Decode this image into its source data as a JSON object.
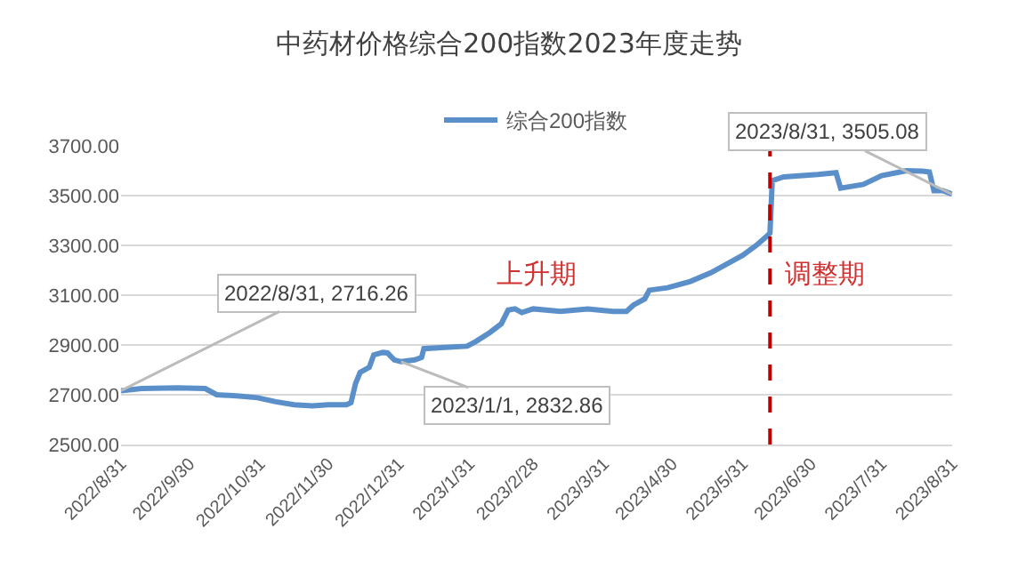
{
  "chart_data": {
    "type": "line",
    "title": "中药材价格综合200指数2023年度走势",
    "x": [
      "2022-08-31",
      "2022-09-09",
      "2022-09-25",
      "2022-10-07",
      "2022-10-12",
      "2022-10-22",
      "2022-10-30",
      "2022-11-07",
      "2022-11-15",
      "2022-11-23",
      "2022-11-30",
      "2022-12-08",
      "2022-12-10",
      "2022-12-12",
      "2022-12-14",
      "2022-12-18",
      "2022-12-20",
      "2022-12-24",
      "2022-12-26",
      "2022-12-29",
      "2023-01-01",
      "2023-01-07",
      "2023-01-10",
      "2023-01-11",
      "2023-01-20",
      "2023-01-30",
      "2023-02-03",
      "2023-02-09",
      "2023-02-14",
      "2023-02-17",
      "2023-02-20",
      "2023-02-23",
      "2023-02-28",
      "2023-03-12",
      "2023-03-24",
      "2023-04-04",
      "2023-04-10",
      "2023-04-13",
      "2023-04-18",
      "2023-04-20",
      "2023-04-28",
      "2023-05-08",
      "2023-05-17",
      "2023-05-25",
      "2023-05-31",
      "2023-06-06",
      "2023-06-11",
      "2023-06-12",
      "2023-06-13",
      "2023-06-18",
      "2023-07-03",
      "2023-07-11",
      "2023-07-13",
      "2023-07-23",
      "2023-07-31",
      "2023-08-11",
      "2023-08-18",
      "2023-08-21",
      "2023-08-23",
      "2023-08-27",
      "2023-08-31"
    ],
    "series": [
      {
        "name": "综合200指数",
        "color": "#5b8fc9",
        "values": [
          2716.26,
          2725,
          2728,
          2725,
          2700,
          2695,
          2688,
          2672,
          2660,
          2655,
          2660,
          2660,
          2668,
          2745,
          2790,
          2810,
          2860,
          2870,
          2868,
          2840,
          2832.86,
          2840,
          2850,
          2885,
          2890,
          2895,
          2915,
          2950,
          2985,
          3040,
          3045,
          3030,
          3045,
          3035,
          3045,
          3035,
          3035,
          3060,
          3085,
          3120,
          3130,
          3155,
          3190,
          3230,
          3260,
          3300,
          3340,
          3350,
          3560,
          3575,
          3585,
          3592,
          3530,
          3545,
          3580,
          3600,
          3598,
          3595,
          3520,
          3520,
          3505.08
        ]
      }
    ],
    "xlim": [
      "2022-08-31",
      "2023-08-31"
    ],
    "xticks": [
      {
        "value": "2022-08-31",
        "label": "2022/8/31"
      },
      {
        "value": "2022-09-30",
        "label": "2022/9/30"
      },
      {
        "value": "2022-10-31",
        "label": "2022/10/31"
      },
      {
        "value": "2022-11-30",
        "label": "2022/11/30"
      },
      {
        "value": "2022-12-31",
        "label": "2022/12/31"
      },
      {
        "value": "2023-01-31",
        "label": "2023/1/31"
      },
      {
        "value": "2023-02-28",
        "label": "2023/2/28"
      },
      {
        "value": "2023-03-31",
        "label": "2023/3/31"
      },
      {
        "value": "2023-04-30",
        "label": "2023/4/30"
      },
      {
        "value": "2023-05-31",
        "label": "2023/5/31"
      },
      {
        "value": "2023-06-30",
        "label": "2023/6/30"
      },
      {
        "value": "2023-07-31",
        "label": "2023/7/31"
      },
      {
        "value": "2023-08-31",
        "label": "2023/8/31"
      }
    ],
    "ylim": [
      2500,
      3700
    ],
    "yticks": [
      {
        "value": 2500,
        "label": "2500.00"
      },
      {
        "value": 2700,
        "label": "2700.00"
      },
      {
        "value": 2900,
        "label": "2900.00"
      },
      {
        "value": 3100,
        "label": "3100.00"
      },
      {
        "value": 3300,
        "label": "3300.00"
      },
      {
        "value": 3500,
        "label": "3500.00"
      },
      {
        "value": 3700,
        "label": "3700.00"
      }
    ],
    "grid": "y",
    "legend": "top",
    "marker": "none",
    "line_style": "solid",
    "ref_lines": [
      {
        "axis": "x",
        "value": "2023-06-12",
        "color": "#c00000",
        "line_style": "dashed"
      }
    ],
    "annotations": [
      {
        "text": "2022/8/31, 2716.26",
        "x": "2022-08-31",
        "y": 2716.26
      },
      {
        "text": "2023/1/1, 2832.86",
        "x": "2023-01-01",
        "y": 2832.86
      },
      {
        "text": "2023/8/31, 3505.08",
        "x": "2023-08-31",
        "y": 3505.08
      },
      "上升期",
      "调整期"
    ]
  }
}
